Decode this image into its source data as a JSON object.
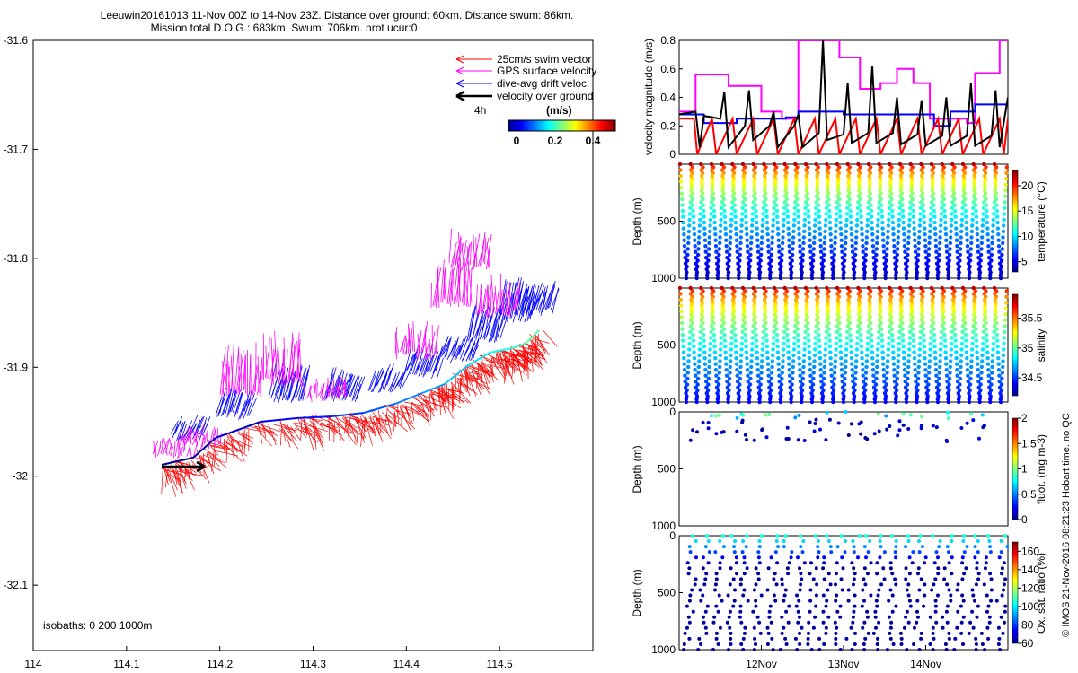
{
  "header": {
    "line1": "Leeuwin20161013 11-Nov 00Z to 14-Nov 23Z. Distance over ground: 60km. Distance swum: 86km.",
    "line2": "Mission total D.O.G.: 683km. Swum: 706km. nrot ucur:0"
  },
  "side_note": "© IMOS 21-Nov-2016 08:21:23 Hobart time. no QC",
  "map": {
    "xticks": [
      "114",
      "114.1",
      "114.2",
      "114.3",
      "114.4",
      "114.5"
    ],
    "yticks": [
      "-31.6",
      "-31.7",
      "-31.8",
      "-31.9",
      "-32",
      "-32.1"
    ],
    "isobaths": "isobaths: 0   200   1000m",
    "legend": [
      {
        "label": "25cm/s swim vector",
        "color": "#ff0000"
      },
      {
        "label": "GPS surface velocity",
        "color": "#ff00ff"
      },
      {
        "label": "dive-avg drift veloc.",
        "color": "#0000ff"
      },
      {
        "label": "velocity over ground",
        "color": "#000000"
      }
    ],
    "scale_label": "4h",
    "colorbar_title": "(m/s)",
    "colorbar_ticks": [
      "0",
      "0.2",
      "0.4"
    ]
  },
  "chart_data": [
    {
      "type": "line",
      "id": "velocity",
      "ylabel": "velocity magnitude (m/s)",
      "ylim": [
        0,
        0.8
      ],
      "yticks": [
        "0",
        "0.2",
        "0.4",
        "0.6",
        "0.8"
      ],
      "xrange_days": [
        0,
        4
      ],
      "series": [
        {
          "color": "#ff00ff",
          "x": [
            0,
            0.2,
            0.2,
            0.6,
            0.6,
            1.0,
            1.0,
            1.25,
            1.25,
            1.45,
            1.45,
            1.95,
            1.95,
            2.2,
            2.2,
            2.45,
            2.45,
            2.65,
            2.65,
            2.85,
            2.85,
            3.05,
            3.05,
            3.5,
            3.5,
            3.6,
            3.6,
            3.9,
            3.9,
            4.0
          ],
          "y": [
            0.3,
            0.3,
            0.56,
            0.56,
            0.48,
            0.48,
            0.3,
            0.3,
            0.25,
            0.25,
            0.8,
            0.8,
            0.68,
            0.68,
            0.46,
            0.46,
            0.5,
            0.5,
            0.6,
            0.6,
            0.5,
            0.5,
            0.25,
            0.25,
            0.22,
            0.22,
            0.57,
            0.57,
            0.8,
            0.8
          ]
        },
        {
          "color": "#0000ff",
          "x": [
            0,
            0.3,
            0.3,
            0.7,
            0.7,
            1.3,
            1.3,
            1.45,
            1.45,
            2.0,
            2.0,
            3.1,
            3.1,
            3.3,
            3.3,
            3.6,
            3.6,
            4.0
          ],
          "y": [
            0.28,
            0.28,
            0.22,
            0.22,
            0.25,
            0.25,
            0.26,
            0.26,
            0.3,
            0.3,
            0.28,
            0.28,
            0.2,
            0.2,
            0.3,
            0.3,
            0.35,
            0.35
          ]
        },
        {
          "color": "#ff0000",
          "x": [
            0,
            0.18,
            0.22,
            0.4,
            0.45,
            0.65,
            0.7,
            0.9,
            0.95,
            1.15,
            1.2,
            1.4,
            1.45,
            1.65,
            1.7,
            1.9,
            1.95,
            2.15,
            2.2,
            2.4,
            2.45,
            2.65,
            2.7,
            2.9,
            2.95,
            3.15,
            3.2,
            3.4,
            3.45,
            3.65,
            3.7,
            3.9,
            3.95,
            4.0
          ],
          "y": [
            0.25,
            0.25,
            0.0,
            0.25,
            0.0,
            0.25,
            0.0,
            0.25,
            0.0,
            0.25,
            0.0,
            0.25,
            0.0,
            0.25,
            0.0,
            0.25,
            0.0,
            0.25,
            0.0,
            0.25,
            0.0,
            0.25,
            0.0,
            0.25,
            0.0,
            0.25,
            0.0,
            0.25,
            0.0,
            0.25,
            0.0,
            0.25,
            0.0,
            0.25
          ]
        },
        {
          "color": "#000000",
          "x": [
            0,
            0.2,
            0.25,
            0.3,
            0.5,
            0.55,
            0.6,
            0.8,
            0.85,
            0.9,
            1.1,
            1.15,
            1.2,
            1.4,
            1.45,
            1.5,
            1.7,
            1.75,
            1.8,
            2.0,
            2.05,
            2.1,
            2.3,
            2.35,
            2.4,
            2.6,
            2.65,
            2.7,
            2.9,
            2.95,
            3.0,
            3.2,
            3.25,
            3.3,
            3.5,
            3.55,
            3.6,
            3.8,
            3.85,
            3.9,
            4.0
          ],
          "y": [
            0.28,
            0.3,
            0.05,
            0.27,
            0.25,
            0.44,
            0.05,
            0.2,
            0.45,
            0.1,
            0.2,
            0.3,
            0.05,
            0.2,
            0.28,
            0.05,
            0.15,
            0.8,
            0.1,
            0.14,
            0.5,
            0.08,
            0.15,
            0.62,
            0.08,
            0.15,
            0.4,
            0.07,
            0.14,
            0.38,
            0.06,
            0.13,
            0.4,
            0.06,
            0.13,
            0.5,
            0.06,
            0.13,
            0.45,
            0.05,
            0.4
          ]
        }
      ]
    },
    {
      "type": "scatter",
      "id": "temperature",
      "ylabel": "Depth (m)",
      "ylim": [
        1000,
        0
      ],
      "yticks": [
        "500",
        "1000"
      ],
      "colorbar_label": "temperature (°C)",
      "colorbar_range": [
        3,
        23
      ],
      "colorbar_ticks": [
        "5",
        "10",
        "15",
        "20"
      ],
      "profile_count": 31,
      "surface_value": 22,
      "deep_value": 4
    },
    {
      "type": "scatter",
      "id": "salinity",
      "ylabel": "Depth (m)",
      "ylim": [
        1000,
        0
      ],
      "yticks": [
        "500",
        "1000"
      ],
      "colorbar_label": "salinity",
      "colorbar_range": [
        34.2,
        35.9
      ],
      "colorbar_ticks": [
        "34.5",
        "35",
        "35.5"
      ],
      "profile_count": 31,
      "surface_value": 35.8,
      "deep_value": 34.4
    },
    {
      "type": "scatter",
      "id": "fluorescence",
      "ylabel": "Depth (m)",
      "ylim": [
        1000,
        0
      ],
      "yticks": [
        "0",
        "500",
        "1000"
      ],
      "colorbar_label": "fluor. (mg m-3)",
      "colorbar_range": [
        0,
        2
      ],
      "colorbar_ticks": [
        "0",
        "0.5",
        "1",
        "1.5",
        "2"
      ]
    },
    {
      "type": "scatter",
      "id": "oxygen",
      "ylabel": "Depth (m)",
      "ylim": [
        1000,
        0
      ],
      "yticks": [
        "0",
        "500",
        "1000"
      ],
      "colorbar_label": "Ox. sat. ratio (%)",
      "colorbar_range": [
        60,
        170
      ],
      "colorbar_ticks": [
        "60",
        "80",
        "100",
        "120",
        "140",
        "160"
      ],
      "xtick_labels": [
        "12Nov",
        "13Nov",
        "14Nov"
      ]
    }
  ]
}
